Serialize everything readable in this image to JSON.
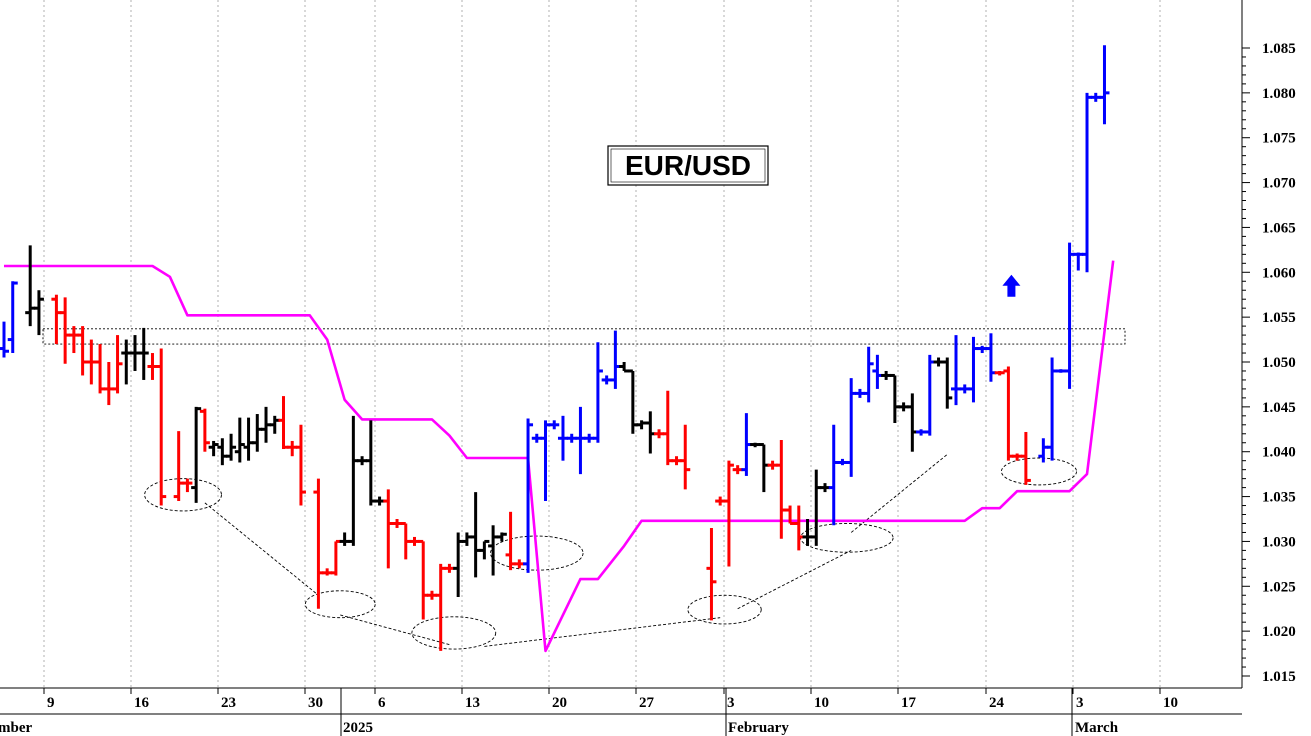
{
  "chart_data": {
    "type": "ohlc-bar",
    "title": "EUR/USD",
    "ylim": [
      1.012,
      1.089
    ],
    "y_ticks": [
      "1.015",
      "1.020",
      "1.025",
      "1.030",
      "1.035",
      "1.040",
      "1.045",
      "1.050",
      "1.055",
      "1.060",
      "1.065",
      "1.070",
      "1.075",
      "1.080",
      "1.085"
    ],
    "x_ticks": [
      "9",
      "16",
      "23",
      "30",
      "6",
      "13",
      "20",
      "27",
      "3",
      "10",
      "17",
      "24",
      "3",
      "10"
    ],
    "month_labels": [
      "mber",
      "2025",
      "February",
      "March"
    ],
    "colors": {
      "up": "#0000ff",
      "down": "#ff0000",
      "neutral": "#000000",
      "stop_line": "#ff00ff",
      "grid": "#b0b0b0"
    },
    "signal_arrow": {
      "day": 115,
      "price": 1.0585,
      "direction": "up"
    },
    "resistance_band": {
      "start_day": 0,
      "end_day": 130,
      "low": 1.052,
      "high": 1.0537
    },
    "bars": [
      {
        "d": 0,
        "o": 1.0515,
        "h": 1.0545,
        "l": 1.0505,
        "c": 1.0512,
        "k": "b"
      },
      {
        "d": 1,
        "o": 1.0525,
        "h": 1.059,
        "l": 1.051,
        "c": 1.0588,
        "k": "b"
      },
      {
        "d": 3,
        "o": 1.0555,
        "h": 1.063,
        "l": 1.054,
        "c": 1.056,
        "k": "n"
      },
      {
        "d": 4,
        "o": 1.056,
        "h": 1.058,
        "l": 1.053,
        "c": 1.057,
        "k": "n"
      },
      {
        "d": 6,
        "o": 1.057,
        "h": 1.0575,
        "l": 1.052,
        "c": 1.0555,
        "k": "r"
      },
      {
        "d": 7,
        "o": 1.0555,
        "h": 1.0572,
        "l": 1.0498,
        "c": 1.053,
        "k": "r"
      },
      {
        "d": 8,
        "o": 1.053,
        "h": 1.054,
        "l": 1.051,
        "c": 1.053,
        "k": "r"
      },
      {
        "d": 9,
        "o": 1.053,
        "h": 1.054,
        "l": 1.0485,
        "c": 1.05,
        "k": "r"
      },
      {
        "d": 10,
        "o": 1.05,
        "h": 1.0525,
        "l": 1.0475,
        "c": 1.05,
        "k": "r"
      },
      {
        "d": 11,
        "o": 1.05,
        "h": 1.052,
        "l": 1.0465,
        "c": 1.047,
        "k": "r"
      },
      {
        "d": 12,
        "o": 1.047,
        "h": 1.05,
        "l": 1.0452,
        "c": 1.047,
        "k": "r"
      },
      {
        "d": 13,
        "o": 1.047,
        "h": 1.053,
        "l": 1.0465,
        "c": 1.0498,
        "k": "r"
      },
      {
        "d": 14,
        "o": 1.051,
        "h": 1.0525,
        "l": 1.0475,
        "c": 1.051,
        "k": "n"
      },
      {
        "d": 15,
        "o": 1.051,
        "h": 1.053,
        "l": 1.049,
        "c": 1.051,
        "k": "n"
      },
      {
        "d": 16,
        "o": 1.051,
        "h": 1.0538,
        "l": 1.048,
        "c": 1.051,
        "k": "n"
      },
      {
        "d": 17,
        "o": 1.0495,
        "h": 1.051,
        "l": 1.048,
        "c": 1.0495,
        "k": "r"
      },
      {
        "d": 18,
        "o": 1.0495,
        "h": 1.0515,
        "l": 1.034,
        "c": 1.035,
        "k": "r"
      },
      {
        "d": 20,
        "o": 1.035,
        "h": 1.0423,
        "l": 1.0345,
        "c": 1.0365,
        "k": "r"
      },
      {
        "d": 21,
        "o": 1.0365,
        "h": 1.037,
        "l": 1.0355,
        "c": 1.0365,
        "k": "r"
      },
      {
        "d": 22,
        "o": 1.036,
        "h": 1.045,
        "l": 1.0343,
        "c": 1.0448,
        "k": "n"
      },
      {
        "d": 23,
        "o": 1.0445,
        "h": 1.0448,
        "l": 1.04,
        "c": 1.041,
        "k": "r"
      },
      {
        "d": 24,
        "o": 1.0405,
        "h": 1.0412,
        "l": 1.0395,
        "c": 1.0408,
        "k": "n"
      },
      {
        "d": 25,
        "o": 1.0405,
        "h": 1.0415,
        "l": 1.0385,
        "c": 1.0395,
        "k": "n"
      },
      {
        "d": 26,
        "o": 1.0395,
        "h": 1.042,
        "l": 1.039,
        "c": 1.0405,
        "k": "n"
      },
      {
        "d": 27,
        "o": 1.04,
        "h": 1.0438,
        "l": 1.0388,
        "c": 1.0408,
        "k": "n"
      },
      {
        "d": 28,
        "o": 1.0405,
        "h": 1.0438,
        "l": 1.039,
        "c": 1.041,
        "k": "n"
      },
      {
        "d": 29,
        "o": 1.041,
        "h": 1.0442,
        "l": 1.04,
        "c": 1.0425,
        "k": "n"
      },
      {
        "d": 30,
        "o": 1.0425,
        "h": 1.045,
        "l": 1.041,
        "c": 1.043,
        "k": "n"
      },
      {
        "d": 31,
        "o": 1.043,
        "h": 1.044,
        "l": 1.042,
        "c": 1.0435,
        "k": "n"
      },
      {
        "d": 32,
        "o": 1.0435,
        "h": 1.0462,
        "l": 1.0403,
        "c": 1.0405,
        "k": "r"
      },
      {
        "d": 33,
        "o": 1.0405,
        "h": 1.0412,
        "l": 1.0395,
        "c": 1.0405,
        "k": "r"
      },
      {
        "d": 34,
        "o": 1.0405,
        "h": 1.043,
        "l": 1.034,
        "c": 1.0355,
        "k": "r"
      },
      {
        "d": 36,
        "o": 1.0355,
        "h": 1.037,
        "l": 1.0225,
        "c": 1.0265,
        "k": "r"
      },
      {
        "d": 37,
        "o": 1.0265,
        "h": 1.027,
        "l": 1.0262,
        "c": 1.0265,
        "k": "r"
      },
      {
        "d": 38,
        "o": 1.0265,
        "h": 1.03,
        "l": 1.0262,
        "c": 1.03,
        "k": "r"
      },
      {
        "d": 39,
        "o": 1.03,
        "h": 1.031,
        "l": 1.0295,
        "c": 1.03,
        "k": "n"
      },
      {
        "d": 40,
        "o": 1.03,
        "h": 1.044,
        "l": 1.0295,
        "c": 1.039,
        "k": "n"
      },
      {
        "d": 41,
        "o": 1.039,
        "h": 1.0395,
        "l": 1.0385,
        "c": 1.039,
        "k": "n"
      },
      {
        "d": 42,
        "o": 1.039,
        "h": 1.0435,
        "l": 1.034,
        "c": 1.0345,
        "k": "n"
      },
      {
        "d": 43,
        "o": 1.0345,
        "h": 1.035,
        "l": 1.034,
        "c": 1.0345,
        "k": "n"
      },
      {
        "d": 44,
        "o": 1.0345,
        "h": 1.0358,
        "l": 1.027,
        "c": 1.032,
        "k": "r"
      },
      {
        "d": 45,
        "o": 1.032,
        "h": 1.0325,
        "l": 1.0315,
        "c": 1.032,
        "k": "r"
      },
      {
        "d": 46,
        "o": 1.032,
        "h": 1.032,
        "l": 1.028,
        "c": 1.03,
        "k": "r"
      },
      {
        "d": 47,
        "o": 1.03,
        "h": 1.0305,
        "l": 1.0295,
        "c": 1.03,
        "k": "r"
      },
      {
        "d": 48,
        "o": 1.03,
        "h": 1.03,
        "l": 1.0213,
        "c": 1.024,
        "k": "r"
      },
      {
        "d": 49,
        "o": 1.024,
        "h": 1.0245,
        "l": 1.0235,
        "c": 1.024,
        "k": "r"
      },
      {
        "d": 50,
        "o": 1.024,
        "h": 1.0275,
        "l": 1.0178,
        "c": 1.027,
        "k": "r"
      },
      {
        "d": 51,
        "o": 1.027,
        "h": 1.0275,
        "l": 1.0265,
        "c": 1.027,
        "k": "r"
      },
      {
        "d": 52,
        "o": 1.027,
        "h": 1.031,
        "l": 1.0238,
        "c": 1.03,
        "k": "n"
      },
      {
        "d": 53,
        "o": 1.03,
        "h": 1.031,
        "l": 1.0295,
        "c": 1.0305,
        "k": "n"
      },
      {
        "d": 54,
        "o": 1.0305,
        "h": 1.0355,
        "l": 1.026,
        "c": 1.029,
        "k": "n"
      },
      {
        "d": 55,
        "o": 1.029,
        "h": 1.03,
        "l": 1.028,
        "c": 1.03,
        "k": "n"
      },
      {
        "d": 56,
        "o": 1.0295,
        "h": 1.0318,
        "l": 1.0262,
        "c": 1.0305,
        "k": "n"
      },
      {
        "d": 57,
        "o": 1.0305,
        "h": 1.031,
        "l": 1.03,
        "c": 1.0308,
        "k": "n"
      },
      {
        "d": 58,
        "o": 1.0285,
        "h": 1.0333,
        "l": 1.0268,
        "c": 1.0275,
        "k": "r"
      },
      {
        "d": 59,
        "o": 1.0275,
        "h": 1.028,
        "l": 1.027,
        "c": 1.0275,
        "k": "r"
      },
      {
        "d": 60,
        "o": 1.0275,
        "h": 1.0437,
        "l": 1.0265,
        "c": 1.043,
        "k": "b"
      },
      {
        "d": 61,
        "o": 1.0415,
        "h": 1.042,
        "l": 1.041,
        "c": 1.0415,
        "k": "b"
      },
      {
        "d": 62,
        "o": 1.0415,
        "h": 1.0435,
        "l": 1.0345,
        "c": 1.043,
        "k": "b"
      },
      {
        "d": 63,
        "o": 1.043,
        "h": 1.0435,
        "l": 1.0425,
        "c": 1.043,
        "k": "b"
      },
      {
        "d": 64,
        "o": 1.0415,
        "h": 1.044,
        "l": 1.039,
        "c": 1.0415,
        "k": "b"
      },
      {
        "d": 65,
        "o": 1.0415,
        "h": 1.042,
        "l": 1.041,
        "c": 1.0415,
        "k": "b"
      },
      {
        "d": 66,
        "o": 1.0415,
        "h": 1.045,
        "l": 1.0375,
        "c": 1.0415,
        "k": "b"
      },
      {
        "d": 67,
        "o": 1.0415,
        "h": 1.042,
        "l": 1.041,
        "c": 1.0415,
        "k": "b"
      },
      {
        "d": 68,
        "o": 1.0415,
        "h": 1.0522,
        "l": 1.041,
        "c": 1.049,
        "k": "b"
      },
      {
        "d": 69,
        "o": 1.048,
        "h": 1.0485,
        "l": 1.0475,
        "c": 1.048,
        "k": "b"
      },
      {
        "d": 70,
        "o": 1.048,
        "h": 1.0535,
        "l": 1.047,
        "c": 1.0495,
        "k": "b"
      },
      {
        "d": 71,
        "o": 1.0495,
        "h": 1.05,
        "l": 1.049,
        "c": 1.049,
        "k": "n"
      },
      {
        "d": 72,
        "o": 1.049,
        "h": 1.049,
        "l": 1.042,
        "c": 1.043,
        "k": "n"
      },
      {
        "d": 73,
        "o": 1.043,
        "h": 1.0435,
        "l": 1.0425,
        "c": 1.0432,
        "k": "n"
      },
      {
        "d": 74,
        "o": 1.0432,
        "h": 1.0445,
        "l": 1.0398,
        "c": 1.042,
        "k": "n"
      },
      {
        "d": 75,
        "o": 1.042,
        "h": 1.0425,
        "l": 1.0415,
        "c": 1.042,
        "k": "r"
      },
      {
        "d": 76,
        "o": 1.042,
        "h": 1.0468,
        "l": 1.0385,
        "c": 1.039,
        "k": "r"
      },
      {
        "d": 77,
        "o": 1.039,
        "h": 1.0395,
        "l": 1.0385,
        "c": 1.039,
        "k": "r"
      },
      {
        "d": 78,
        "o": 1.039,
        "h": 1.043,
        "l": 1.0358,
        "c": 1.038,
        "k": "r"
      },
      {
        "d": 81,
        "o": 1.027,
        "h": 1.0315,
        "l": 1.0212,
        "c": 1.0255,
        "k": "r"
      },
      {
        "d": 82,
        "o": 1.0345,
        "h": 1.035,
        "l": 1.034,
        "c": 1.0345,
        "k": "r"
      },
      {
        "d": 83,
        "o": 1.0345,
        "h": 1.039,
        "l": 1.0272,
        "c": 1.0385,
        "k": "r"
      },
      {
        "d": 84,
        "o": 1.038,
        "h": 1.0385,
        "l": 1.0375,
        "c": 1.038,
        "k": "r"
      },
      {
        "d": 85,
        "o": 1.038,
        "h": 1.0443,
        "l": 1.0373,
        "c": 1.0408,
        "k": "b"
      },
      {
        "d": 86,
        "o": 1.0408,
        "h": 1.041,
        "l": 1.0405,
        "c": 1.0408,
        "k": "n"
      },
      {
        "d": 87,
        "o": 1.0408,
        "h": 1.0408,
        "l": 1.0355,
        "c": 1.0385,
        "k": "n"
      },
      {
        "d": 88,
        "o": 1.0385,
        "h": 1.039,
        "l": 1.038,
        "c": 1.0385,
        "k": "r"
      },
      {
        "d": 89,
        "o": 1.0385,
        "h": 1.0413,
        "l": 1.0303,
        "c": 1.0335,
        "k": "r"
      },
      {
        "d": 90,
        "o": 1.0335,
        "h": 1.034,
        "l": 1.032,
        "c": 1.032,
        "k": "r"
      },
      {
        "d": 91,
        "o": 1.032,
        "h": 1.034,
        "l": 1.029,
        "c": 1.0305,
        "k": "r"
      },
      {
        "d": 92,
        "o": 1.0305,
        "h": 1.0325,
        "l": 1.0295,
        "c": 1.0305,
        "k": "n"
      },
      {
        "d": 93,
        "o": 1.0305,
        "h": 1.038,
        "l": 1.0295,
        "c": 1.036,
        "k": "n"
      },
      {
        "d": 94,
        "o": 1.036,
        "h": 1.0365,
        "l": 1.0355,
        "c": 1.036,
        "k": "n"
      },
      {
        "d": 95,
        "o": 1.036,
        "h": 1.043,
        "l": 1.0318,
        "c": 1.0388,
        "k": "b"
      },
      {
        "d": 96,
        "o": 1.0388,
        "h": 1.0392,
        "l": 1.0385,
        "c": 1.0388,
        "k": "b"
      },
      {
        "d": 97,
        "o": 1.0388,
        "h": 1.0482,
        "l": 1.0372,
        "c": 1.0465,
        "k": "b"
      },
      {
        "d": 98,
        "o": 1.0465,
        "h": 1.047,
        "l": 1.046,
        "c": 1.0465,
        "k": "b"
      },
      {
        "d": 99,
        "o": 1.0465,
        "h": 1.0517,
        "l": 1.0455,
        "c": 1.0498,
        "k": "b"
      },
      {
        "d": 100,
        "o": 1.049,
        "h": 1.0508,
        "l": 1.047,
        "c": 1.0485,
        "k": "b"
      },
      {
        "d": 101,
        "o": 1.0485,
        "h": 1.049,
        "l": 1.048,
        "c": 1.0485,
        "k": "n"
      },
      {
        "d": 102,
        "o": 1.0485,
        "h": 1.0485,
        "l": 1.0432,
        "c": 1.045,
        "k": "n"
      },
      {
        "d": 103,
        "o": 1.045,
        "h": 1.0455,
        "l": 1.0445,
        "c": 1.045,
        "k": "n"
      },
      {
        "d": 104,
        "o": 1.045,
        "h": 1.0465,
        "l": 1.04,
        "c": 1.0422,
        "k": "n"
      },
      {
        "d": 105,
        "o": 1.0422,
        "h": 1.0425,
        "l": 1.0418,
        "c": 1.0422,
        "k": "b"
      },
      {
        "d": 106,
        "o": 1.0422,
        "h": 1.0508,
        "l": 1.0418,
        "c": 1.05,
        "k": "b"
      },
      {
        "d": 107,
        "o": 1.05,
        "h": 1.0505,
        "l": 1.0495,
        "c": 1.05,
        "k": "n"
      },
      {
        "d": 108,
        "o": 1.05,
        "h": 1.0505,
        "l": 1.0448,
        "c": 1.046,
        "k": "n"
      },
      {
        "d": 109,
        "o": 1.047,
        "h": 1.053,
        "l": 1.0452,
        "c": 1.047,
        "k": "b"
      },
      {
        "d": 110,
        "o": 1.047,
        "h": 1.0475,
        "l": 1.0465,
        "c": 1.047,
        "k": "b"
      },
      {
        "d": 111,
        "o": 1.047,
        "h": 1.0528,
        "l": 1.0455,
        "c": 1.0515,
        "k": "b"
      },
      {
        "d": 112,
        "o": 1.0515,
        "h": 1.0518,
        "l": 1.051,
        "c": 1.0515,
        "k": "b"
      },
      {
        "d": 113,
        "o": 1.0515,
        "h": 1.0532,
        "l": 1.0478,
        "c": 1.0488,
        "k": "b"
      },
      {
        "d": 114,
        "o": 1.0488,
        "h": 1.049,
        "l": 1.0485,
        "c": 1.0488,
        "k": "r"
      },
      {
        "d": 115,
        "o": 1.049,
        "h": 1.0495,
        "l": 1.039,
        "c": 1.0395,
        "k": "r"
      },
      {
        "d": 116,
        "o": 1.0395,
        "h": 1.0398,
        "l": 1.039,
        "c": 1.0395,
        "k": "r"
      },
      {
        "d": 117,
        "o": 1.0395,
        "h": 1.0422,
        "l": 1.0363,
        "c": 1.0368,
        "k": "r"
      },
      {
        "d": 119,
        "o": 1.0395,
        "h": 1.0415,
        "l": 1.0388,
        "c": 1.0405,
        "k": "b"
      },
      {
        "d": 120,
        "o": 1.0405,
        "h": 1.0505,
        "l": 1.039,
        "c": 1.049,
        "k": "b"
      },
      {
        "d": 121,
        "o": 1.049,
        "h": 1.0492,
        "l": 1.0488,
        "c": 1.049,
        "k": "b"
      },
      {
        "d": 122,
        "o": 1.049,
        "h": 1.0633,
        "l": 1.047,
        "c": 1.062,
        "k": "b"
      },
      {
        "d": 123,
        "o": 1.062,
        "h": 1.0622,
        "l": 1.0602,
        "c": 1.062,
        "k": "b"
      },
      {
        "d": 124,
        "o": 1.062,
        "h": 1.08,
        "l": 1.06,
        "c": 1.0795,
        "k": "b"
      },
      {
        "d": 125,
        "o": 1.0795,
        "h": 1.08,
        "l": 1.079,
        "c": 1.0795,
        "k": "b"
      },
      {
        "d": 126,
        "o": 1.0795,
        "h": 1.0853,
        "l": 1.0765,
        "c": 1.08,
        "k": "b"
      }
    ],
    "stop_line": [
      [
        0,
        1.0607
      ],
      [
        17,
        1.0607
      ],
      [
        19,
        1.0595
      ],
      [
        21,
        1.0552
      ],
      [
        35,
        1.0552
      ],
      [
        37,
        1.0525
      ],
      [
        39,
        1.0458
      ],
      [
        41,
        1.0436
      ],
      [
        49,
        1.0436
      ],
      [
        51,
        1.0418
      ],
      [
        53,
        1.0393
      ],
      [
        60,
        1.0393
      ],
      [
        62,
        1.0178
      ],
      [
        66,
        1.0258
      ],
      [
        68,
        1.0258
      ],
      [
        71,
        1.0295
      ],
      [
        73,
        1.0323
      ],
      [
        110,
        1.0323
      ],
      [
        112,
        1.0337
      ],
      [
        114,
        1.0337
      ],
      [
        116,
        1.0356
      ],
      [
        122,
        1.0356
      ],
      [
        124,
        1.0375
      ],
      [
        127,
        1.0613
      ]
    ],
    "ellipses": [
      [
        20.5,
        1.0352,
        4.4,
        0.0018
      ],
      [
        38.5,
        1.023,
        4,
        0.0015
      ],
      [
        51.5,
        1.0198,
        4.8,
        0.0018
      ],
      [
        61,
        1.0287,
        5.3,
        0.0019
      ],
      [
        82.5,
        1.0224,
        4.2,
        0.0016
      ],
      [
        96.5,
        1.0304,
        5.3,
        0.0016
      ],
      [
        118.5,
        1.0378,
        4.3,
        0.0015
      ]
    ],
    "trend_lines": [
      [
        [
          23,
          1.0343
        ],
        [
          36,
          1.024
        ]
      ],
      [
        [
          38.5,
          1.0218
        ],
        [
          51,
          1.0185
        ]
      ],
      [
        [
          55,
          1.0183
        ],
        [
          82,
          1.0215
        ]
      ],
      [
        [
          84,
          1.0225
        ],
        [
          97,
          1.029
        ]
      ],
      [
        [
          97,
          1.031
        ],
        [
          108,
          1.0397
        ]
      ]
    ]
  }
}
